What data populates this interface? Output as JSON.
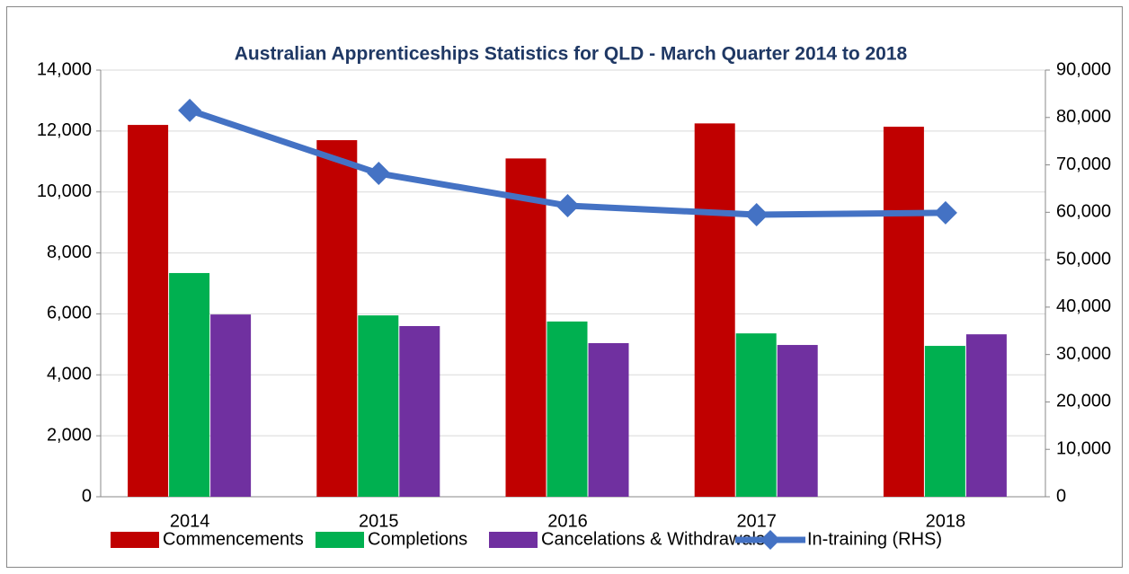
{
  "chart_data": {
    "type": "bar",
    "title": "Australian Apprenticeships Statistics for QLD - March Quarter  2014 to 2018",
    "categories": [
      "2014",
      "2015",
      "2016",
      "2017",
      "2018"
    ],
    "series": [
      {
        "name": "Commencements",
        "color": "#c00000",
        "values": [
          12200,
          11700,
          11100,
          12250,
          12140
        ]
      },
      {
        "name": "Completions",
        "color": "#00b050",
        "values": [
          7340,
          5950,
          5750,
          5360,
          4950
        ]
      },
      {
        "name": "Cancelations & Withdrawals",
        "color": "#7030a0",
        "values": [
          5980,
          5600,
          5040,
          4980,
          5330
        ]
      },
      {
        "name": "In-training (RHS)",
        "color": "#4472c4",
        "type": "line",
        "axis": "y2",
        "values": [
          81500,
          68200,
          61400,
          59500,
          59900
        ]
      }
    ],
    "ylim": [
      0,
      14000
    ],
    "yticks": [
      0,
      {
        "value": 2000,
        "label": "2,000"
      },
      {
        "value": 4000,
        "label": "4,000"
      },
      {
        "value": 6000,
        "label": "6,000"
      },
      {
        "value": 8000,
        "label": "8,000"
      },
      {
        "value": 10000,
        "label": "10,000"
      },
      {
        "value": 12000,
        "label": "12,000"
      },
      {
        "value": 14000,
        "label": "14,000"
      }
    ],
    "y2lim": [
      0,
      90000
    ],
    "y2ticks": [
      0,
      {
        "value": 10000,
        "label": "10,000"
      },
      {
        "value": 20000,
        "label": "20,000"
      },
      {
        "value": 30000,
        "label": "30,000"
      },
      {
        "value": 40000,
        "label": "40,000"
      },
      {
        "value": 50000,
        "label": "50,000"
      },
      {
        "value": 60000,
        "label": "60,000"
      },
      {
        "value": 70000,
        "label": "70,000"
      },
      {
        "value": 80000,
        "label": "80,000"
      },
      {
        "value": 90000,
        "label": "90,000"
      }
    ],
    "grid": true,
    "legend": "bottom"
  }
}
